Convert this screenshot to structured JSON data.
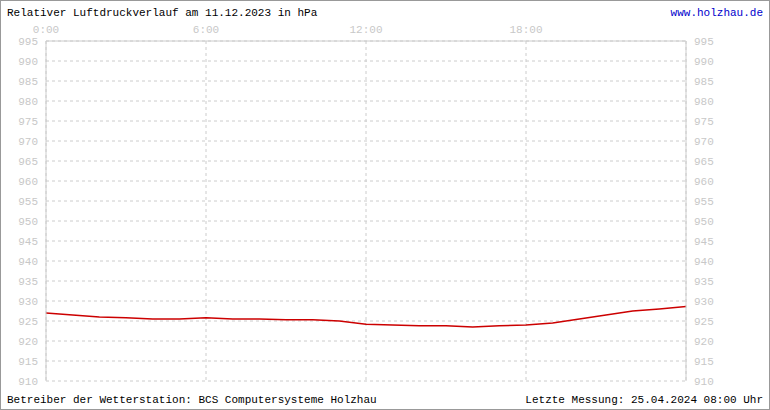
{
  "chart_data": {
    "type": "line",
    "title": "Relativer Luftdruckverlauf am 11.12.2023 in hPa",
    "annotations": [
      "www.holzhau.de",
      "Betreiber der Wetterstation: BCS Computersysteme Holzhau",
      "Letzte Messung: 25.04.2024 08:00 Uhr"
    ],
    "x": [
      0,
      1,
      2,
      3,
      4,
      5,
      6,
      7,
      8,
      9,
      10,
      11,
      12,
      13,
      14,
      15,
      16,
      17,
      18,
      19,
      20,
      21,
      22,
      23,
      24
    ],
    "values": [
      927,
      926.5,
      926,
      925.8,
      925.5,
      925.5,
      925.8,
      925.5,
      925.5,
      925.3,
      925.3,
      925,
      924.2,
      924,
      923.8,
      923.8,
      923.5,
      923.8,
      924,
      924.5,
      925.5,
      926.5,
      927.5,
      928,
      928.6
    ],
    "color": "#cc0000",
    "xlim": [
      0,
      24
    ],
    "xticks": [
      {
        "value": 0,
        "label": "0:00"
      },
      {
        "value": 6,
        "label": "6:00"
      },
      {
        "value": 12,
        "label": "12:00"
      },
      {
        "value": 18,
        "label": "18:00"
      }
    ],
    "ylim": [
      910,
      995
    ],
    "yticks": [
      910,
      915,
      920,
      925,
      930,
      935,
      940,
      945,
      950,
      955,
      960,
      965,
      970,
      975,
      980,
      985,
      990,
      995
    ],
    "grid": true
  }
}
